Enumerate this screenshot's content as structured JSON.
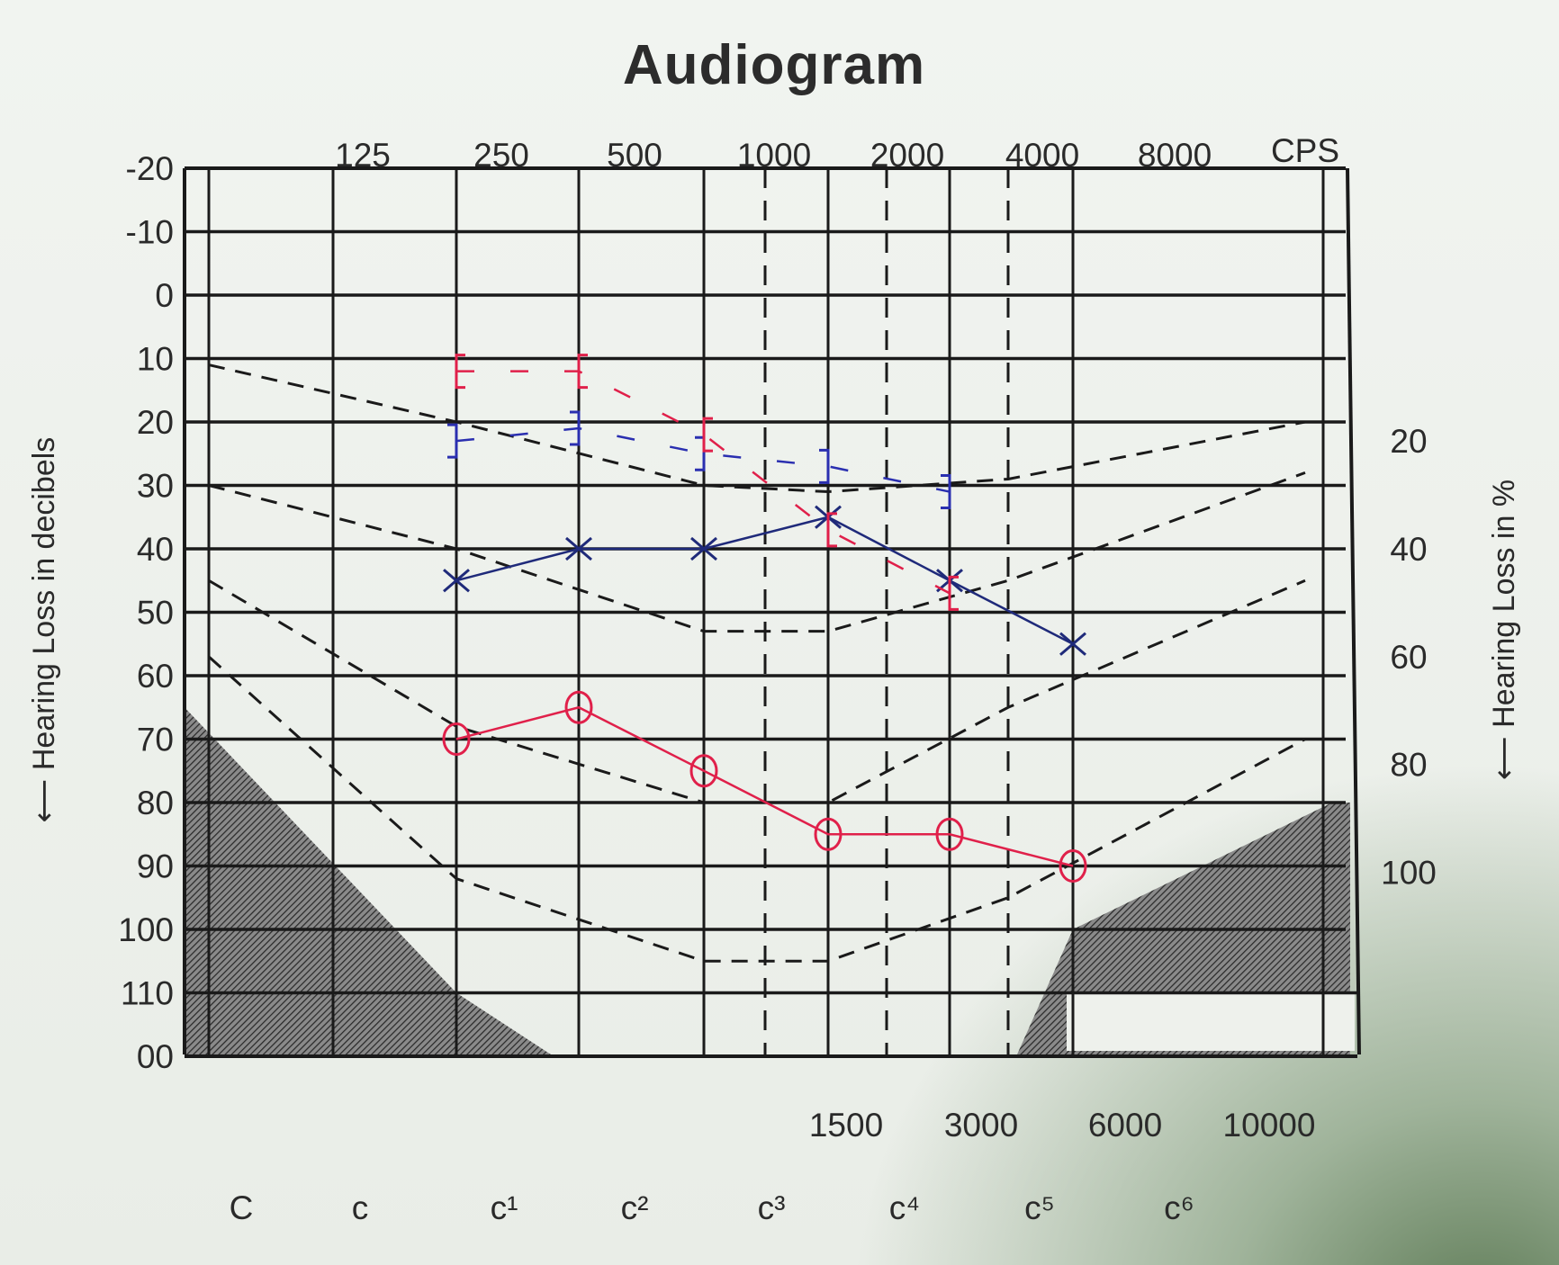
{
  "chart_data": {
    "type": "line",
    "title": "Audiogram",
    "xlabel_top_unit": "CPS",
    "x_top_ticks": [
      "125",
      "250",
      "500",
      "1000",
      "2000",
      "4000",
      "8000"
    ],
    "x_mid_ticks": [
      "1500",
      "3000",
      "6000"
    ],
    "x_bottom_box_ticks": [
      "1500",
      "3000",
      "6000",
      "10000"
    ],
    "x_note_ticks": [
      "C",
      "c",
      "c¹",
      "c²",
      "c³",
      "c⁴",
      "c⁵",
      "c⁶"
    ],
    "ylabel_left": "Hearing Loss in decibels",
    "y_left_ticks": [
      "-20",
      "-10",
      "0",
      "10",
      "20",
      "30",
      "40",
      "50",
      "60",
      "70",
      "80",
      "90",
      "100",
      "110",
      "00"
    ],
    "ylim": [
      -20,
      120
    ],
    "ylabel_right": "Hearing Loss in %",
    "y_right_ticks": [
      {
        "label": "20",
        "db": 23
      },
      {
        "label": "40",
        "db": 40
      },
      {
        "label": "60",
        "db": 57
      },
      {
        "label": "80",
        "db": 74
      },
      {
        "label": "100",
        "db": 91
      }
    ],
    "grid": true,
    "x": [
      250,
      500,
      1000,
      2000,
      4000,
      8000
    ],
    "series": [
      {
        "name": "Left ear air conduction (X)",
        "color": "#1f2a7a",
        "marker": "x",
        "x": [
          250,
          500,
          1000,
          2000,
          4000,
          8000
        ],
        "values": [
          45,
          40,
          40,
          35,
          45,
          55
        ]
      },
      {
        "name": "Right ear air conduction (O)",
        "color": "#e0204a",
        "marker": "o",
        "x": [
          250,
          500,
          1000,
          2000,
          4000,
          8000
        ],
        "values": [
          70,
          65,
          75,
          85,
          85,
          90
        ]
      },
      {
        "name": "Left ear bone conduction (])",
        "color": "#2a2fb0",
        "marker": "]",
        "x": [
          250,
          500,
          1000,
          2000,
          4000
        ],
        "values": [
          23,
          21,
          25,
          27,
          31
        ]
      },
      {
        "name": "Right ear bone conduction ([)",
        "color": "#e0204a",
        "marker": "[",
        "x": [
          250,
          500,
          1000,
          2000,
          4000
        ],
        "values": [
          12,
          12,
          22,
          37,
          47
        ]
      }
    ],
    "reference_curves": [
      {
        "name": "curve-1",
        "values_db": [
          11,
          20,
          30,
          31,
          29,
          20
        ]
      },
      {
        "name": "curve-2",
        "values_db": [
          30,
          40,
          53,
          53,
          45,
          28
        ]
      },
      {
        "name": "curve-3",
        "values_db": [
          45,
          68,
          80,
          80,
          65,
          45
        ]
      },
      {
        "name": "curve-4",
        "values_db": [
          57,
          92,
          105,
          105,
          95,
          70
        ]
      }
    ]
  },
  "colors": {
    "grid": "#1a1a1a",
    "red": "#e0204a",
    "blue": "#1f2a7a",
    "hatch": "#3a3a3a"
  }
}
